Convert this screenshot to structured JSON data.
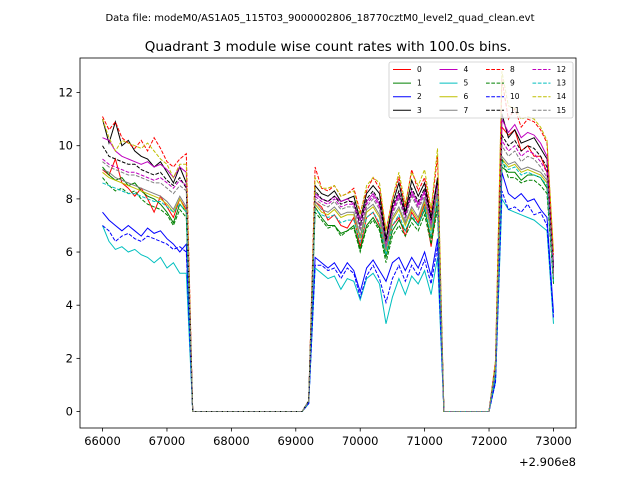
{
  "suptitle": "Data file: modeM0/AS1A05_115T03_9000002806_18770cztM0_level2_quad_clean.evt",
  "chart_data": {
    "type": "line",
    "title": "Quadrant 3 module wise count rates with 100.0s bins.",
    "xlabel": "",
    "ylabel": "",
    "offset_label": "+2.906e8",
    "xlim": [
      65650,
      73350
    ],
    "ylim": [
      -0.62,
      13.3
    ],
    "xticks": [
      66000,
      67000,
      68000,
      69000,
      70000,
      71000,
      72000,
      73000
    ],
    "yticks": [
      0,
      2,
      4,
      6,
      8,
      10,
      12
    ],
    "legend_position": "top-right",
    "x_blocks": [
      {
        "start": 66000,
        "step": 100,
        "count": 14
      },
      {
        "start": 69200,
        "step": 100,
        "count": 21
      },
      {
        "start": 72100,
        "step": 100,
        "count": 10
      }
    ],
    "series": [
      {
        "name": "0",
        "color": "#ff0000",
        "dash": false,
        "b1": [
          9.1,
          8.9,
          9.5,
          8.6,
          8.4,
          8.1,
          8.4,
          8.0,
          7.5,
          8.1,
          7.7,
          7.3,
          8.0,
          7.6
        ],
        "b2": [
          0.4,
          7.9,
          7.7,
          7.2,
          7.4,
          7.0,
          6.9,
          7.3,
          6.2,
          7.3,
          7.5,
          7.0,
          6.1,
          7.0,
          7.3,
          6.6,
          7.5,
          7.1,
          7.8,
          6.2,
          7.9
        ],
        "b3": [
          1.6,
          10.7,
          10.4,
          10.6,
          9.8,
          10.0,
          9.6,
          9.6,
          9.0,
          5.2
        ]
      },
      {
        "name": "1",
        "color": "#008000",
        "dash": false,
        "b1": [
          9.2,
          8.9,
          8.7,
          8.8,
          8.5,
          8.6,
          8.3,
          8.1,
          8.0,
          7.8,
          7.5,
          7.1,
          7.8,
          7.5
        ],
        "b2": [
          0.4,
          7.7,
          7.3,
          7.0,
          7.0,
          6.7,
          6.8,
          7.0,
          6.1,
          7.0,
          7.3,
          6.9,
          5.8,
          6.8,
          7.2,
          6.8,
          7.3,
          7.0,
          7.6,
          6.5,
          7.9
        ],
        "b3": [
          1.5,
          9.2,
          9.0,
          9.0,
          8.7,
          8.9,
          8.9,
          8.8,
          8.4,
          4.9
        ]
      },
      {
        "name": "2",
        "color": "#0000ff",
        "dash": false,
        "b1": [
          7.5,
          7.2,
          7.0,
          6.8,
          7.0,
          6.8,
          6.6,
          6.9,
          6.7,
          6.8,
          6.5,
          6.3,
          6.0,
          6.3
        ],
        "b2": [
          0.3,
          5.8,
          5.6,
          5.4,
          5.6,
          5.2,
          5.6,
          5.3,
          4.5,
          5.4,
          5.7,
          5.3,
          4.9,
          5.6,
          5.8,
          5.3,
          5.8,
          5.4,
          6.0,
          5.1,
          6.5
        ],
        "b3": [
          1.2,
          9.0,
          8.2,
          8.0,
          8.2,
          7.9,
          8.0,
          7.6,
          7.3,
          3.7
        ]
      },
      {
        "name": "3",
        "color": "#000000",
        "dash": false,
        "b1": [
          11.0,
          10.1,
          10.9,
          10.0,
          10.2,
          9.8,
          9.6,
          9.5,
          9.2,
          9.4,
          9.0,
          8.6,
          9.2,
          8.6
        ],
        "b2": [
          0.4,
          8.5,
          8.2,
          8.1,
          8.3,
          7.9,
          8.0,
          8.1,
          7.2,
          8.2,
          8.5,
          8.2,
          6.5,
          7.8,
          8.6,
          7.5,
          8.7,
          8.1,
          8.6,
          7.3,
          8.8
        ],
        "b3": [
          1.8,
          11.2,
          10.3,
          10.6,
          10.1,
          10.2,
          10.3,
          9.9,
          9.5,
          5.5
        ]
      },
      {
        "name": "4",
        "color": "#bf00bf",
        "dash": false,
        "b1": [
          10.3,
          10.2,
          9.8,
          9.6,
          9.5,
          9.4,
          9.3,
          9.4,
          9.2,
          9.3,
          9.1,
          8.8,
          9.2,
          9.0
        ],
        "b2": [
          0.4,
          8.2,
          8.0,
          7.9,
          8.1,
          7.9,
          8.0,
          7.8,
          7.2,
          7.9,
          8.2,
          7.8,
          6.2,
          7.6,
          8.2,
          7.4,
          8.3,
          7.8,
          8.3,
          7.1,
          8.6
        ],
        "b3": [
          1.7,
          11.0,
          10.5,
          10.8,
          10.3,
          10.5,
          10.4,
          10.1,
          9.6,
          5.4
        ]
      },
      {
        "name": "5",
        "color": "#00bfbf",
        "dash": false,
        "b1": [
          7.0,
          6.4,
          6.1,
          6.2,
          6.0,
          6.1,
          5.9,
          5.8,
          5.6,
          5.8,
          5.4,
          5.6,
          5.2,
          5.2
        ],
        "b2": [
          0.3,
          5.4,
          5.2,
          5.0,
          5.1,
          4.6,
          5.0,
          4.9,
          4.2,
          5.0,
          5.2,
          4.8,
          3.3,
          4.3,
          5.0,
          4.4,
          5.1,
          4.8,
          5.3,
          4.4,
          5.8
        ],
        "b3": [
          1.1,
          8.0,
          7.6,
          7.5,
          7.4,
          7.3,
          7.2,
          7.0,
          6.8,
          3.3
        ]
      },
      {
        "name": "6",
        "color": "#bfbf00",
        "dash": false,
        "b1": [
          9.0,
          8.8,
          8.7,
          8.6,
          8.5,
          8.4,
          8.3,
          8.2,
          8.1,
          8.0,
          7.8,
          7.5,
          8.0,
          7.5
        ],
        "b2": [
          0.4,
          7.8,
          7.5,
          7.4,
          7.6,
          7.3,
          7.4,
          7.4,
          6.5,
          7.5,
          7.7,
          7.3,
          6.0,
          7.2,
          7.6,
          7.0,
          7.6,
          7.2,
          7.9,
          6.8,
          8.2
        ],
        "b3": [
          1.6,
          9.5,
          9.2,
          9.3,
          9.0,
          9.1,
          9.0,
          8.9,
          8.6,
          5.0
        ]
      },
      {
        "name": "7",
        "color": "#808080",
        "dash": false,
        "b1": [
          9.1,
          9.0,
          8.8,
          8.7,
          8.6,
          8.5,
          8.4,
          8.3,
          8.2,
          8.1,
          7.9,
          7.6,
          8.1,
          7.7
        ],
        "b2": [
          0.4,
          7.9,
          7.6,
          7.5,
          7.7,
          7.4,
          7.5,
          7.5,
          6.6,
          7.6,
          7.8,
          7.4,
          6.1,
          7.3,
          7.7,
          7.1,
          7.7,
          7.3,
          8.0,
          6.9,
          8.3
        ],
        "b3": [
          1.6,
          9.6,
          9.3,
          9.4,
          9.1,
          9.2,
          9.1,
          9.0,
          8.7,
          5.0
        ]
      },
      {
        "name": "8",
        "color": "#ff0000",
        "dash": true,
        "b1": [
          11.1,
          10.6,
          10.9,
          10.3,
          10.1,
          9.9,
          10.2,
          9.8,
          10.3,
          9.9,
          9.4,
          9.2,
          9.5,
          9.7
        ],
        "b2": [
          0.4,
          9.2,
          8.4,
          8.3,
          8.5,
          8.1,
          8.2,
          8.4,
          7.5,
          8.3,
          8.8,
          8.4,
          6.8,
          8.0,
          8.8,
          7.7,
          9.1,
          8.3,
          8.8,
          7.5,
          9.6
        ],
        "b3": [
          1.9,
          12.5,
          11.0,
          11.4,
          10.7,
          11.0,
          10.9,
          10.6,
          10.1,
          5.9
        ]
      },
      {
        "name": "9",
        "color": "#008000",
        "dash": true,
        "b1": [
          8.8,
          8.5,
          8.3,
          8.4,
          8.2,
          8.3,
          8.0,
          7.8,
          7.7,
          7.6,
          7.4,
          7.0,
          7.6,
          7.3
        ],
        "b2": [
          0.4,
          7.5,
          7.2,
          6.9,
          7.0,
          6.6,
          6.8,
          6.9,
          6.0,
          6.9,
          7.2,
          6.8,
          5.6,
          6.6,
          7.0,
          6.6,
          7.1,
          6.8,
          7.4,
          6.3,
          7.6
        ],
        "b3": [
          1.5,
          9.5,
          8.8,
          8.8,
          8.6,
          8.7,
          8.7,
          8.5,
          8.2,
          4.8
        ]
      },
      {
        "name": "10",
        "color": "#0000ff",
        "dash": true,
        "b1": [
          7.0,
          6.8,
          6.4,
          6.6,
          6.7,
          6.5,
          6.4,
          6.6,
          6.5,
          6.4,
          6.3,
          6.1,
          6.2,
          6.0
        ],
        "b2": [
          0.3,
          5.5,
          5.5,
          5.3,
          5.4,
          5.0,
          5.4,
          5.2,
          4.3,
          5.1,
          5.5,
          5.0,
          4.1,
          5.0,
          5.5,
          4.9,
          5.5,
          5.1,
          5.7,
          4.8,
          6.2
        ],
        "b3": [
          1.1,
          8.3,
          7.6,
          7.7,
          7.5,
          7.8,
          7.4,
          7.5,
          7.0,
          3.5
        ]
      },
      {
        "name": "11",
        "color": "#000000",
        "dash": true,
        "b1": [
          10.0,
          9.6,
          9.5,
          9.4,
          9.3,
          9.3,
          9.1,
          9.0,
          8.9,
          9.0,
          8.7,
          8.5,
          8.8,
          8.4
        ],
        "b2": [
          0.4,
          8.3,
          8.0,
          7.9,
          8.1,
          7.8,
          7.9,
          7.9,
          7.0,
          8.0,
          8.3,
          7.9,
          6.4,
          7.7,
          8.3,
          7.4,
          8.4,
          7.9,
          8.4,
          7.2,
          8.7
        ],
        "b3": [
          1.7,
          10.4,
          10.0,
          10.2,
          9.8,
          10.0,
          9.9,
          9.6,
          9.2,
          5.3
        ]
      },
      {
        "name": "12",
        "color": "#bf00bf",
        "dash": true,
        "b1": [
          9.5,
          9.3,
          9.2,
          9.1,
          9.0,
          9.0,
          8.9,
          8.8,
          8.7,
          8.8,
          8.6,
          8.4,
          8.7,
          8.5
        ],
        "b2": [
          0.4,
          8.1,
          7.9,
          7.8,
          8.0,
          7.7,
          7.8,
          7.8,
          6.9,
          7.8,
          8.1,
          7.7,
          6.2,
          7.5,
          8.1,
          7.3,
          8.2,
          7.7,
          8.2,
          7.0,
          8.5
        ],
        "b3": [
          1.7,
          10.2,
          9.8,
          10.0,
          9.6,
          9.8,
          9.7,
          9.4,
          9.0,
          5.2
        ]
      },
      {
        "name": "13",
        "color": "#00bfbf",
        "dash": true,
        "b1": [
          8.6,
          8.5,
          8.4,
          8.3,
          8.2,
          8.2,
          8.1,
          8.0,
          7.9,
          7.9,
          7.7,
          7.5,
          7.8,
          7.5
        ],
        "b2": [
          0.4,
          7.6,
          7.4,
          7.3,
          7.4,
          7.1,
          7.2,
          7.2,
          6.4,
          7.3,
          7.5,
          7.1,
          5.9,
          7.0,
          7.4,
          6.8,
          7.4,
          7.0,
          7.7,
          6.6,
          8.0
        ],
        "b3": [
          1.5,
          9.4,
          9.1,
          9.2,
          8.9,
          9.0,
          8.9,
          8.8,
          8.5,
          4.9
        ]
      },
      {
        "name": "14",
        "color": "#bfbf00",
        "dash": true,
        "b1": [
          11.0,
          10.3,
          9.8,
          10.2,
          10.1,
          10.0,
          9.9,
          10.1,
          9.8,
          9.5,
          9.3,
          8.8,
          9.3,
          9.3
        ],
        "b2": [
          0.4,
          8.8,
          8.4,
          8.4,
          8.5,
          8.1,
          8.2,
          8.3,
          7.4,
          8.5,
          8.8,
          8.6,
          6.8,
          8.0,
          9.0,
          7.8,
          9.0,
          8.5,
          9.1,
          7.6,
          9.9
        ],
        "b3": [
          1.9,
          12.8,
          11.5,
          11.4,
          11.0,
          11.1,
          11.0,
          10.7,
          10.2,
          6.0
        ]
      },
      {
        "name": "15",
        "color": "#808080",
        "dash": true,
        "b1": [
          9.4,
          9.2,
          9.1,
          9.0,
          8.9,
          8.9,
          8.8,
          8.7,
          8.6,
          8.6,
          8.4,
          8.2,
          8.5,
          8.3
        ],
        "b2": [
          0.4,
          8.0,
          7.8,
          7.7,
          7.9,
          7.6,
          7.7,
          7.7,
          6.8,
          7.7,
          8.0,
          7.6,
          6.1,
          7.4,
          8.0,
          7.2,
          8.1,
          7.6,
          8.1,
          6.9,
          8.4
        ],
        "b3": [
          1.6,
          10.0,
          9.6,
          9.8,
          9.4,
          9.6,
          9.5,
          9.2,
          8.8,
          5.1
        ]
      }
    ]
  }
}
